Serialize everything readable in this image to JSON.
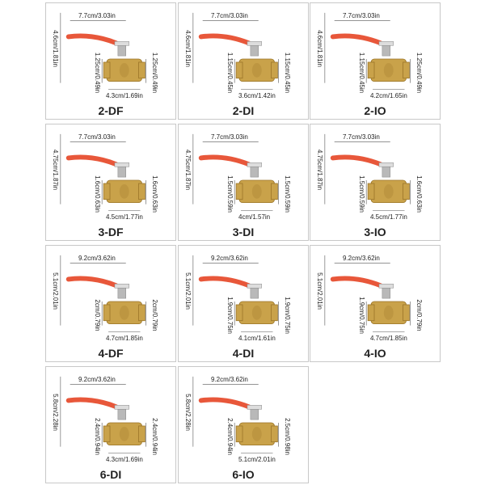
{
  "panels": [
    {
      "model": "2-DF",
      "handle_length": "7.7cm/3.03in",
      "height": "4.6cm/1.81in",
      "inner_size": "1.25cm/0.49in",
      "outer_size": "1.25cm/0.49in",
      "body_length": "4.3cm/1.69in"
    },
    {
      "model": "2-DI",
      "handle_length": "7.7cm/3.03in",
      "height": "4.6cm/1.81in",
      "inner_size": "1.15cm/0.45in",
      "outer_size": "1.15cm/0.45in",
      "body_length": "3.6cm/1.42in"
    },
    {
      "model": "2-IO",
      "handle_length": "7.7cm/3.03in",
      "height": "4.6cm/1.81in",
      "inner_size": "1.15cm/0.45in",
      "outer_size": "1.25cm/0.49in",
      "body_length": "4.2cm/1.65in"
    },
    {
      "model": "3-DF",
      "handle_length": "7.7cm/3.03in",
      "height": "4.75cm/1.87in",
      "inner_size": "1.6cm/0.63in",
      "outer_size": "1.6cm/0.63in",
      "body_length": "4.5cm/1.77in"
    },
    {
      "model": "3-DI",
      "handle_length": "7.7cm/3.03in",
      "height": "4.75cm/1.87in",
      "inner_size": "1.5cm/0.59in",
      "outer_size": "1.5cm/0.59in",
      "body_length": "4cm/1.57in"
    },
    {
      "model": "3-IO",
      "handle_length": "7.7cm/3.03in",
      "height": "4.75cm/1.87in",
      "inner_size": "1.5cm/0.59in",
      "outer_size": "1.6cm/0.63in",
      "body_length": "4.5cm/1.77in"
    },
    {
      "model": "4-DF",
      "handle_length": "9.2cm/3.62in",
      "height": "5.1cm/2.01in",
      "inner_size": "2cm/0.79in",
      "outer_size": "2cm/0.79in",
      "body_length": "4.7cm/1.85in"
    },
    {
      "model": "4-DI",
      "handle_length": "9.2cm/3.62in",
      "height": "5.1cm/2.01in",
      "inner_size": "1.9cm/0.75in",
      "outer_size": "1.9cm/0.75in",
      "body_length": "4.1cm/1.61in"
    },
    {
      "model": "4-IO",
      "handle_length": "9.2cm/3.62in",
      "height": "5.1cm/2.01in",
      "inner_size": "1.9cm/0.75in",
      "outer_size": "2cm/0.79in",
      "body_length": "4.7cm/1.85in"
    },
    {
      "model": "6-DI",
      "handle_length": "9.2cm/3.62in",
      "height": "5.8cm/2.28in",
      "inner_size": "2.4cm/0.94in",
      "outer_size": "2.4cm/0.94in",
      "body_length": "4.3cm/1.69in"
    },
    {
      "model": "6-IO",
      "handle_length": "9.2cm/3.62in",
      "height": "5.8cm/2.28in",
      "inner_size": "2.4cm/0.94in",
      "outer_size": "2.5cm/0.98in",
      "body_length": "5.1cm/2.01in"
    }
  ],
  "colors": {
    "handle": "#e8573a",
    "brass": "#c9a24a",
    "brass_dark": "#9a7428",
    "stem": "#b9b9b9",
    "dimension_line": "#555555"
  },
  "icons": [
    "ball-valve-icon"
  ]
}
